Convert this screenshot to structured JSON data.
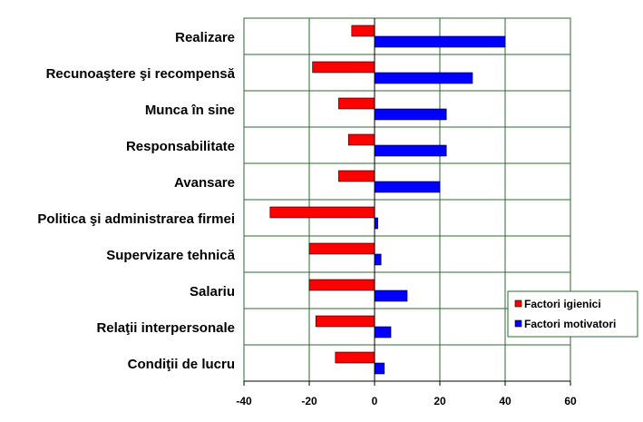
{
  "chart_data": {
    "type": "bar",
    "orientation": "horizontal",
    "title": "",
    "xlabel": "",
    "ylabel": "",
    "xlim": [
      -40,
      60
    ],
    "xticks": [
      -40,
      -20,
      0,
      20,
      40,
      60
    ],
    "grid": true,
    "legend_position": "right",
    "categories": [
      "Realizare",
      "Recunoaştere şi recompensă",
      "Munca în sine",
      "Responsabilitate",
      "Avansare",
      "Politica şi administrarea firmei",
      "Supervizare tehnică",
      "Salariu",
      "Relaţii interpersonale",
      "Condiţii de lucru"
    ],
    "series": [
      {
        "name": "Factori igienici",
        "color": "#ff0000",
        "values": [
          -7,
          -19,
          -11,
          -8,
          -11,
          -32,
          -20,
          -20,
          -18,
          -12
        ]
      },
      {
        "name": "Factori motivatori",
        "color": "#0000ff",
        "values": [
          40,
          30,
          22,
          22,
          20,
          1,
          2,
          10,
          5,
          3
        ]
      }
    ],
    "grid_color": "#2d6a2d",
    "axis_color": "#000000"
  }
}
